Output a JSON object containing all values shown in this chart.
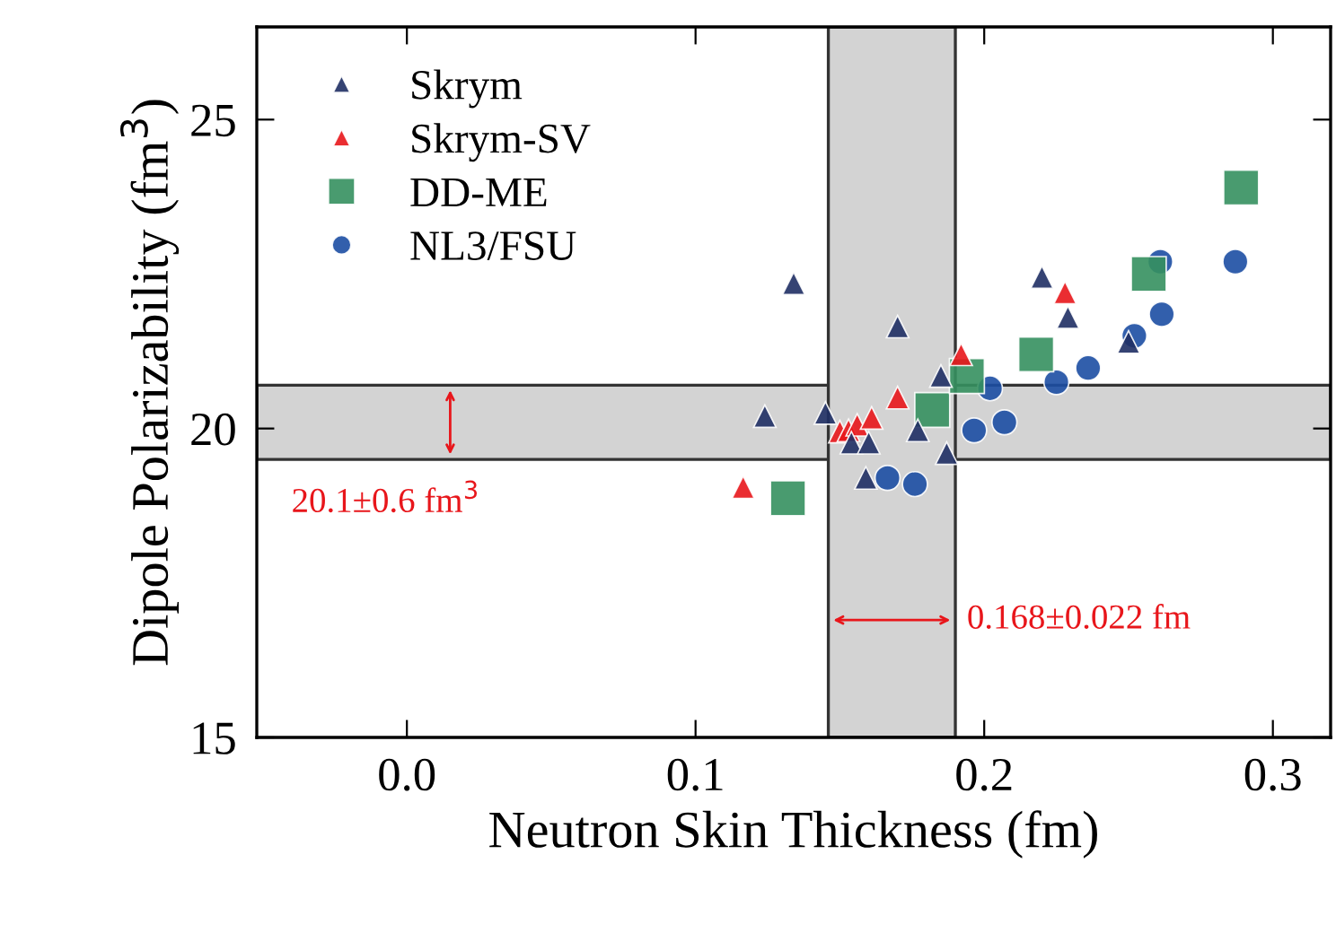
{
  "chart_data": {
    "type": "scatter",
    "xlabel": "Neutron Skin Thickness (fm)",
    "ylabel": "Dipole Polarizability (fm$^{3}$)",
    "xlim": [
      -0.052,
      0.32
    ],
    "ylim": [
      15,
      26.5
    ],
    "xticks": [
      {
        "value": 0,
        "label": "0.0"
      },
      0.1,
      0.2,
      0.3
    ],
    "yticks": [
      15,
      20,
      25
    ],
    "grid": false,
    "legend": "top left",
    "series": [
      {
        "name": "Skrym",
        "color": "#1f2f64",
        "marker": "triangle",
        "x": [
          0.134,
          0.17,
          0.124,
          0.145,
          0.154,
          0.16,
          0.177,
          0.187,
          0.159,
          0.185,
          0.22,
          0.229,
          0.25
        ],
        "values": [
          22.35,
          21.65,
          20.2,
          20.25,
          19.77,
          19.77,
          19.97,
          19.6,
          19.2,
          20.85,
          22.45,
          21.8,
          21.4
        ]
      },
      {
        "name": "Skrym-SV",
        "color": "#e8161b",
        "marker": "triangle",
        "x": [
          0.1165,
          0.15,
          0.153,
          0.156,
          0.161,
          0.17,
          0.192,
          0.228
        ],
        "values": [
          19.05,
          19.95,
          19.97,
          20.06,
          20.17,
          20.5,
          21.2,
          22.2
        ]
      },
      {
        "name": "DD-ME",
        "color": "#35905f",
        "marker": "square",
        "x": [
          0.132,
          0.182,
          0.194,
          0.218,
          0.257,
          0.289
        ],
        "values": [
          18.87,
          20.3,
          20.85,
          21.2,
          22.5,
          23.9
        ]
      },
      {
        "name": "NL3/FSU",
        "color": "#1c4ea3",
        "marker": "circle",
        "x": [
          0.1665,
          0.176,
          0.1965,
          0.202,
          0.207,
          0.225,
          0.236,
          0.252,
          0.2615,
          0.261,
          0.287
        ],
        "values": [
          19.2,
          19.1,
          19.97,
          20.65,
          20.1,
          20.75,
          20.98,
          21.5,
          21.85,
          22.7,
          22.7
        ]
      }
    ],
    "bands": [
      {
        "axis": "y",
        "from": 19.5,
        "to": 20.7,
        "label": "20.1±0.6 fm$^{3}$",
        "color": "#d3d3d3"
      },
      {
        "axis": "x",
        "from": 0.146,
        "to": 0.19,
        "label": "0.168±0.022 fm",
        "color": "#d3d3d3"
      }
    ]
  }
}
